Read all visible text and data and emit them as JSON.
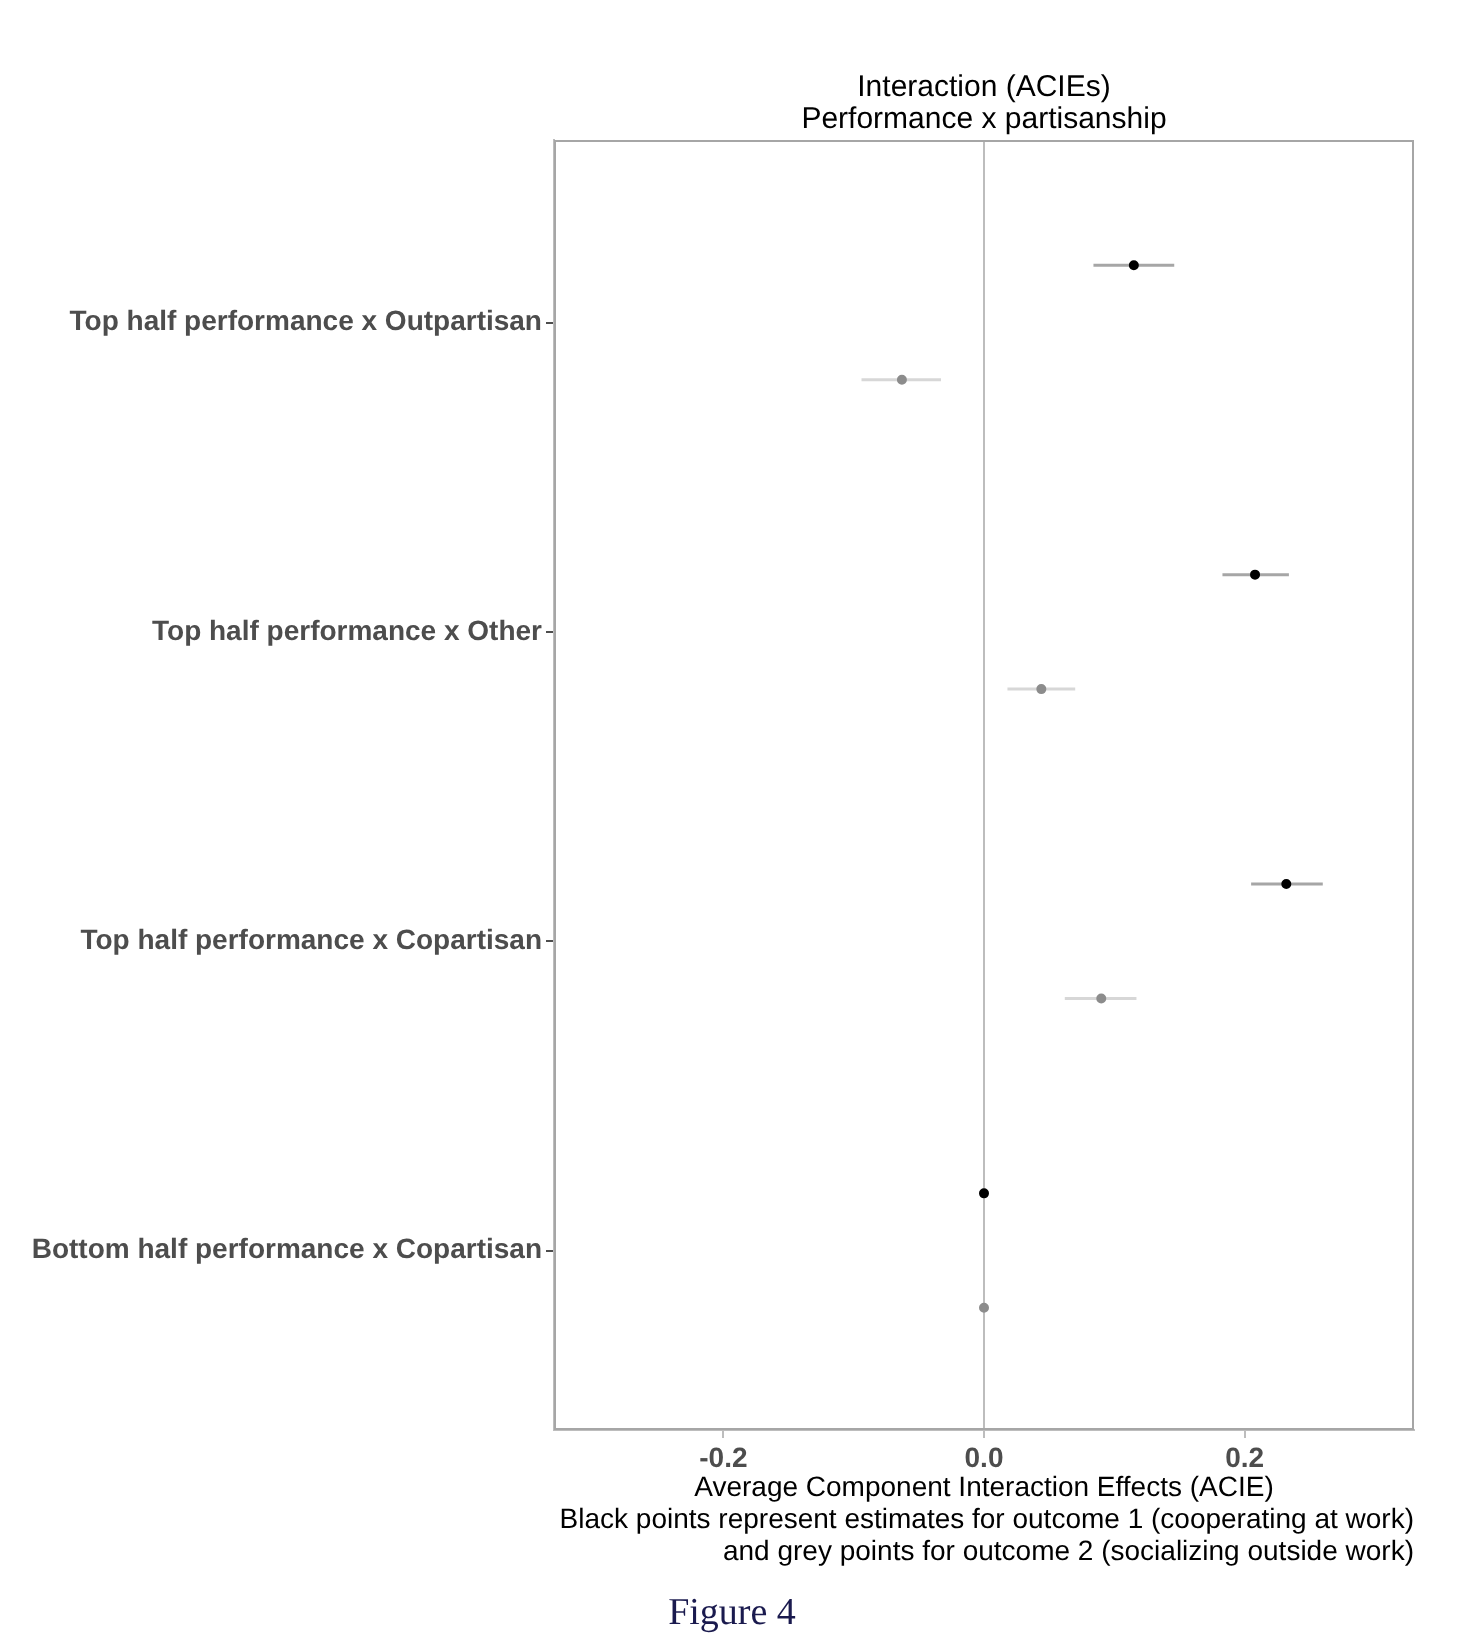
{
  "chart_data": {
    "type": "scatter",
    "orientation": "horizontal",
    "title": "Interaction (ACIEs)\nPerformance x partisanship",
    "xlabel": "Average Component Interaction Effects (ACIE)",
    "categories": [
      "Top half performance x Outpartisan",
      "Top half performance x Other",
      "Top half performance x Copartisan",
      "Bottom half performance x Copartisan"
    ],
    "series": [
      {
        "color": "#000000",
        "values": [
          0.115,
          0.208,
          0.232,
          0
        ],
        "errors": [
          [
            0.084,
            0.146
          ],
          [
            0.183,
            0.234
          ],
          [
            0.205,
            0.26
          ],
          null
        ]
      },
      {
        "color": "#8c8c8c",
        "values": [
          -0.063,
          0.044,
          0.09,
          0
        ],
        "errors": [
          [
            -0.094,
            -0.033
          ],
          [
            0.018,
            0.07
          ],
          [
            0.062,
            0.117
          ],
          null
        ]
      }
    ],
    "xlim": [
      -0.33,
      0.33
    ],
    "xticks": [
      -0.2,
      {
        "value": 0,
        "label": "0.0"
      },
      0.2
    ],
    "ref_lines": [
      {
        "axis": "x",
        "value": 0,
        "color": "#bdbdbd"
      }
    ],
    "grid": false,
    "legend": false,
    "marker": "circle",
    "annotations": [
      "Black points represent estimates for outcome 1 (cooperating at work)\nand grey points for outcome 2 (socializing outside work)",
      "Figure 4"
    ]
  }
}
